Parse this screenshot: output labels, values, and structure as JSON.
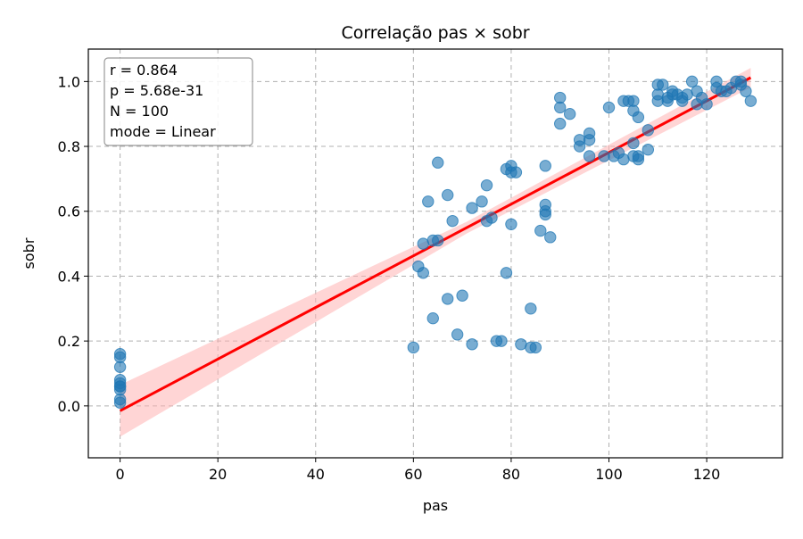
{
  "chart_data": {
    "type": "scatter",
    "title": "Correlação pas × sobr",
    "xlabel": "pas",
    "ylabel": "sobr",
    "xlim": [
      -6.5,
      135.5
    ],
    "ylim": [
      -0.16,
      1.1
    ],
    "x_ticks": [
      0,
      20,
      40,
      60,
      80,
      100,
      120
    ],
    "y_ticks": [
      0.0,
      0.2,
      0.4,
      0.6,
      0.8,
      1.0
    ],
    "x_tick_labels": [
      "0",
      "20",
      "40",
      "60",
      "80",
      "100",
      "120"
    ],
    "y_tick_labels": [
      "0.0",
      "0.2",
      "0.4",
      "0.6",
      "0.8",
      "1.0"
    ],
    "grid": true,
    "stats_box": {
      "placement": "top-left",
      "lines": [
        "r = 0.864",
        "p = 5.68e-31",
        "N = 100",
        "mode = Linear"
      ]
    },
    "colors": {
      "points": "#1f77b4",
      "fit_line": "#ff0000",
      "confidence_band": "#ffb3b3",
      "grid": "#b0b0b0"
    },
    "fit": {
      "type": "linear",
      "x_range": [
        0,
        129
      ],
      "y_start": -0.015,
      "y_end": 1.012,
      "band_halfwidth_start": 0.08,
      "band_halfwidth_mid": 0.018,
      "band_halfwidth_end": 0.03
    },
    "points": [
      {
        "x": 0,
        "y": 0.16
      },
      {
        "x": 0,
        "y": 0.15
      },
      {
        "x": 0,
        "y": 0.12
      },
      {
        "x": 0,
        "y": 0.08
      },
      {
        "x": 0,
        "y": 0.07
      },
      {
        "x": 0,
        "y": 0.06
      },
      {
        "x": 0,
        "y": 0.06
      },
      {
        "x": 0,
        "y": 0.05
      },
      {
        "x": 0,
        "y": 0.02
      },
      {
        "x": 0,
        "y": 0.01
      },
      {
        "x": 60,
        "y": 0.18
      },
      {
        "x": 61,
        "y": 0.43
      },
      {
        "x": 62,
        "y": 0.41
      },
      {
        "x": 62,
        "y": 0.5
      },
      {
        "x": 63,
        "y": 0.63
      },
      {
        "x": 64,
        "y": 0.51
      },
      {
        "x": 64,
        "y": 0.27
      },
      {
        "x": 65,
        "y": 0.51
      },
      {
        "x": 65,
        "y": 0.75
      },
      {
        "x": 67,
        "y": 0.65
      },
      {
        "x": 67,
        "y": 0.33
      },
      {
        "x": 68,
        "y": 0.57
      },
      {
        "x": 69,
        "y": 0.22
      },
      {
        "x": 70,
        "y": 0.34
      },
      {
        "x": 72,
        "y": 0.61
      },
      {
        "x": 72,
        "y": 0.19
      },
      {
        "x": 74,
        "y": 0.63
      },
      {
        "x": 75,
        "y": 0.68
      },
      {
        "x": 75,
        "y": 0.57
      },
      {
        "x": 76,
        "y": 0.58
      },
      {
        "x": 77,
        "y": 0.2
      },
      {
        "x": 78,
        "y": 0.2
      },
      {
        "x": 79,
        "y": 0.73
      },
      {
        "x": 79,
        "y": 0.41
      },
      {
        "x": 80,
        "y": 0.74
      },
      {
        "x": 80,
        "y": 0.72
      },
      {
        "x": 80,
        "y": 0.56
      },
      {
        "x": 81,
        "y": 0.72
      },
      {
        "x": 82,
        "y": 0.19
      },
      {
        "x": 84,
        "y": 0.3
      },
      {
        "x": 84,
        "y": 0.18
      },
      {
        "x": 85,
        "y": 0.18
      },
      {
        "x": 86,
        "y": 0.54
      },
      {
        "x": 87,
        "y": 0.74
      },
      {
        "x": 87,
        "y": 0.62
      },
      {
        "x": 87,
        "y": 0.6
      },
      {
        "x": 87,
        "y": 0.59
      },
      {
        "x": 88,
        "y": 0.52
      },
      {
        "x": 90,
        "y": 0.95
      },
      {
        "x": 90,
        "y": 0.92
      },
      {
        "x": 90,
        "y": 0.87
      },
      {
        "x": 92,
        "y": 0.9
      },
      {
        "x": 94,
        "y": 0.82
      },
      {
        "x": 94,
        "y": 0.8
      },
      {
        "x": 96,
        "y": 0.84
      },
      {
        "x": 96,
        "y": 0.82
      },
      {
        "x": 96,
        "y": 0.77
      },
      {
        "x": 99,
        "y": 0.77
      },
      {
        "x": 100,
        "y": 0.92
      },
      {
        "x": 101,
        "y": 0.77
      },
      {
        "x": 102,
        "y": 0.78
      },
      {
        "x": 103,
        "y": 0.94
      },
      {
        "x": 103,
        "y": 0.76
      },
      {
        "x": 104,
        "y": 0.94
      },
      {
        "x": 105,
        "y": 0.94
      },
      {
        "x": 105,
        "y": 0.91
      },
      {
        "x": 105,
        "y": 0.81
      },
      {
        "x": 105,
        "y": 0.77
      },
      {
        "x": 106,
        "y": 0.89
      },
      {
        "x": 106,
        "y": 0.77
      },
      {
        "x": 106,
        "y": 0.76
      },
      {
        "x": 108,
        "y": 0.85
      },
      {
        "x": 108,
        "y": 0.79
      },
      {
        "x": 110,
        "y": 0.99
      },
      {
        "x": 110,
        "y": 0.96
      },
      {
        "x": 110,
        "y": 0.94
      },
      {
        "x": 111,
        "y": 0.99
      },
      {
        "x": 112,
        "y": 0.95
      },
      {
        "x": 112,
        "y": 0.94
      },
      {
        "x": 113,
        "y": 0.97
      },
      {
        "x": 113,
        "y": 0.96
      },
      {
        "x": 114,
        "y": 0.96
      },
      {
        "x": 115,
        "y": 0.95
      },
      {
        "x": 115,
        "y": 0.94
      },
      {
        "x": 116,
        "y": 0.96
      },
      {
        "x": 117,
        "y": 1.0
      },
      {
        "x": 118,
        "y": 0.97
      },
      {
        "x": 118,
        "y": 0.93
      },
      {
        "x": 119,
        "y": 0.95
      },
      {
        "x": 120,
        "y": 0.93
      },
      {
        "x": 122,
        "y": 1.0
      },
      {
        "x": 122,
        "y": 0.98
      },
      {
        "x": 123,
        "y": 0.97
      },
      {
        "x": 124,
        "y": 0.97
      },
      {
        "x": 125,
        "y": 0.98
      },
      {
        "x": 126,
        "y": 1.0
      },
      {
        "x": 127,
        "y": 1.0
      },
      {
        "x": 127,
        "y": 0.99
      },
      {
        "x": 128,
        "y": 0.97
      },
      {
        "x": 129,
        "y": 0.94
      }
    ]
  }
}
